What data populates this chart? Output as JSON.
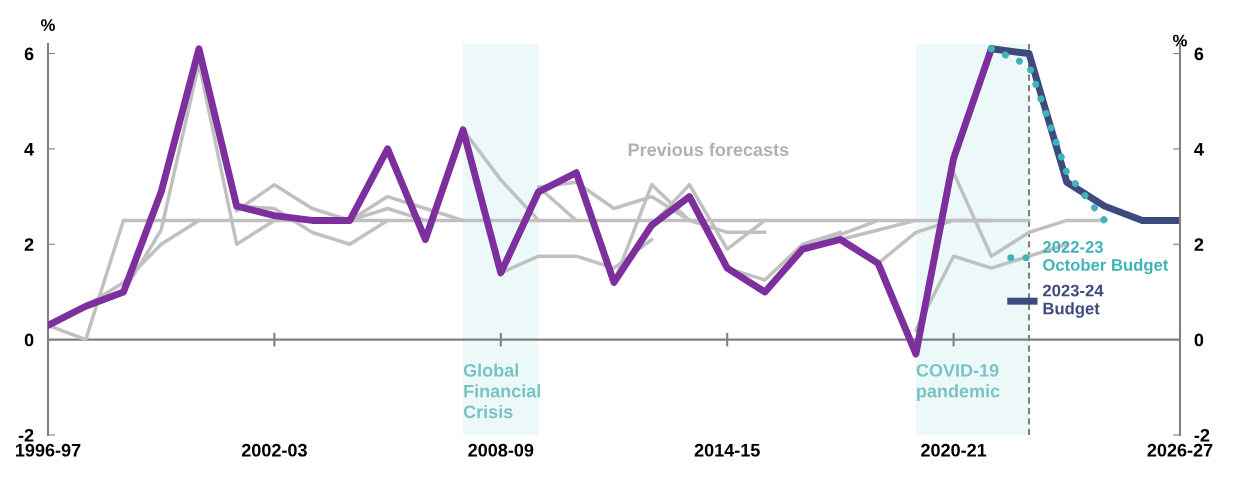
{
  "chart_data": {
    "type": "line",
    "categories": [
      "1996-97",
      null,
      null,
      null,
      null,
      null,
      "2002-03",
      null,
      null,
      null,
      null,
      null,
      "2008-09",
      null,
      null,
      null,
      null,
      null,
      "2014-15",
      null,
      null,
      null,
      null,
      null,
      "2020-21",
      null,
      null,
      null,
      null,
      null,
      "2026-27"
    ],
    "ylim": [
      -2,
      6.2
    ],
    "yticks": [
      -2,
      0,
      2,
      4,
      6
    ],
    "y2lim": [
      -2,
      6.2
    ],
    "y2ticks": [
      -2,
      0,
      2,
      4,
      6
    ],
    "ylabel": "%",
    "y2label": "%",
    "grid": false,
    "legend": "right",
    "series": [
      {
        "name": "Previous forecasts",
        "color": "#c0c0c0",
        "values": [
          null,
          null,
          2.5,
          2.5,
          2.5,
          2.5,
          2.5,
          2.5,
          2.5,
          2.5,
          2.5,
          2.5,
          2.5,
          2.5,
          2.5,
          2.5,
          2.5,
          2.5,
          2.5,
          2.5,
          2.5,
          2.5,
          2.5,
          2.5,
          2.5,
          2.5,
          2.5,
          null,
          null,
          null,
          null
        ]
      },
      {
        "color": "#c0c0c0",
        "values": [
          0.3,
          0.0,
          2.5,
          null,
          null,
          null,
          null,
          null,
          null,
          null,
          null,
          null,
          null,
          null,
          null,
          null,
          null,
          null,
          null,
          null,
          null,
          null,
          null,
          null,
          null,
          null,
          null,
          null,
          null,
          null,
          null
        ]
      },
      {
        "color": "#c0c0c0",
        "values": [
          null,
          0.7,
          1.2,
          2.0,
          2.5,
          null,
          null,
          null,
          null,
          null,
          null,
          null,
          null,
          null,
          null,
          null,
          null,
          null,
          null,
          null,
          null,
          null,
          null,
          null,
          null,
          null,
          null,
          null,
          null,
          null,
          null
        ]
      },
      {
        "color": "#c0c0c0",
        "values": [
          null,
          null,
          1.0,
          2.3,
          5.8,
          2.0,
          2.5,
          null,
          null,
          null,
          null,
          null,
          null,
          null,
          null,
          null,
          null,
          null,
          null,
          null,
          null,
          null,
          null,
          null,
          null,
          null,
          null,
          null,
          null,
          null,
          null
        ]
      },
      {
        "color": "#c0c0c0",
        "values": [
          null,
          null,
          null,
          null,
          6.1,
          2.7,
          3.25,
          2.75,
          2.5,
          null,
          null,
          null,
          null,
          null,
          null,
          null,
          null,
          null,
          null,
          null,
          null,
          null,
          null,
          null,
          null,
          null,
          null,
          null,
          null,
          null,
          null
        ]
      },
      {
        "color": "#c0c0c0",
        "values": [
          null,
          null,
          null,
          null,
          null,
          2.8,
          2.75,
          2.25,
          2.0,
          2.5,
          null,
          null,
          null,
          null,
          null,
          null,
          null,
          null,
          null,
          null,
          null,
          null,
          null,
          null,
          null,
          null,
          null,
          null,
          null,
          null,
          null
        ]
      },
      {
        "color": "#c0c0c0",
        "values": [
          null,
          null,
          null,
          null,
          null,
          null,
          null,
          null,
          2.5,
          3.0,
          2.75,
          2.5,
          null,
          null,
          null,
          null,
          null,
          null,
          null,
          null,
          null,
          null,
          null,
          null,
          null,
          null,
          null,
          null,
          null,
          null,
          null
        ]
      },
      {
        "color": "#c0c0c0",
        "values": [
          null,
          null,
          null,
          null,
          null,
          null,
          null,
          null,
          2.5,
          2.75,
          2.5,
          null,
          null,
          null,
          null,
          null,
          null,
          null,
          null,
          null,
          null,
          null,
          null,
          null,
          null,
          null,
          null,
          null,
          null,
          null,
          null
        ]
      },
      {
        "color": "#c0c0c0",
        "values": [
          null,
          null,
          null,
          null,
          null,
          null,
          null,
          null,
          null,
          null,
          null,
          4.4,
          3.35,
          2.5,
          null,
          null,
          null,
          null,
          null,
          null,
          null,
          null,
          null,
          null,
          null,
          null,
          null,
          null,
          null,
          null,
          null
        ]
      },
      {
        "color": "#c0c0c0",
        "values": [
          null,
          null,
          null,
          null,
          null,
          null,
          null,
          null,
          null,
          null,
          null,
          null,
          1.4,
          1.75,
          1.75,
          1.5,
          2.1,
          null,
          null,
          null,
          null,
          null,
          null,
          null,
          null,
          null,
          null,
          null,
          null,
          null,
          null
        ]
      },
      {
        "color": "#c0c0c0",
        "values": [
          null,
          null,
          null,
          null,
          null,
          null,
          null,
          null,
          null,
          null,
          null,
          null,
          null,
          3.2,
          3.3,
          2.75,
          3.0,
          2.5,
          null,
          null,
          null,
          null,
          null,
          null,
          null,
          null,
          null,
          null,
          null,
          null,
          null
        ]
      },
      {
        "color": "#c0c0c0",
        "values": [
          null,
          null,
          null,
          null,
          null,
          null,
          null,
          null,
          null,
          null,
          null,
          null,
          null,
          3.2,
          2.5,
          null,
          null,
          null,
          null,
          null,
          null,
          null,
          null,
          null,
          null,
          null,
          null,
          null,
          null,
          null,
          null
        ]
      },
      {
        "color": "#c0c0c0",
        "values": [
          null,
          null,
          null,
          null,
          null,
          null,
          null,
          null,
          null,
          null,
          null,
          null,
          null,
          null,
          null,
          1.2,
          3.25,
          2.5,
          2.25,
          2.25,
          null,
          null,
          null,
          null,
          null,
          null,
          null,
          null,
          null,
          null,
          null
        ]
      },
      {
        "color": "#c0c0c0",
        "values": [
          null,
          null,
          null,
          null,
          null,
          null,
          null,
          null,
          null,
          null,
          null,
          null,
          null,
          null,
          null,
          null,
          2.4,
          3.25,
          1.9,
          2.5,
          null,
          null,
          null,
          null,
          null,
          null,
          null,
          null,
          null,
          null,
          null
        ]
      },
      {
        "color": "#c0c0c0",
        "values": [
          null,
          null,
          null,
          null,
          null,
          null,
          null,
          null,
          null,
          null,
          null,
          null,
          null,
          null,
          null,
          null,
          null,
          null,
          1.5,
          1.25,
          2.0,
          2.25,
          null,
          null,
          null,
          null,
          null,
          null,
          null,
          null,
          null
        ]
      },
      {
        "color": "#c0c0c0",
        "values": [
          null,
          null,
          null,
          null,
          null,
          null,
          null,
          null,
          null,
          null,
          null,
          null,
          null,
          null,
          null,
          null,
          null,
          null,
          null,
          null,
          1.9,
          2.2,
          2.5,
          null,
          null,
          null,
          null,
          null,
          null,
          null,
          null
        ]
      },
      {
        "color": "#c0c0c0",
        "values": [
          null,
          null,
          null,
          null,
          null,
          null,
          null,
          null,
          null,
          null,
          null,
          null,
          null,
          null,
          null,
          null,
          null,
          null,
          null,
          null,
          null,
          2.1,
          2.3,
          2.5,
          null,
          null,
          null,
          null,
          null,
          null,
          null
        ]
      },
      {
        "color": "#c0c0c0",
        "values": [
          null,
          null,
          null,
          null,
          null,
          null,
          null,
          null,
          null,
          null,
          null,
          null,
          null,
          null,
          null,
          null,
          null,
          null,
          null,
          null,
          null,
          null,
          1.6,
          2.25,
          2.5,
          2.5,
          null,
          null,
          null,
          null,
          null
        ]
      },
      {
        "color": "#c0c0c0",
        "values": [
          null,
          null,
          null,
          null,
          null,
          null,
          null,
          null,
          null,
          null,
          null,
          null,
          null,
          null,
          null,
          null,
          null,
          null,
          null,
          null,
          null,
          null,
          null,
          0.2,
          1.75,
          1.5,
          1.75,
          2.0,
          null,
          null,
          null
        ]
      },
      {
        "color": "#c0c0c0",
        "values": [
          null,
          null,
          null,
          null,
          null,
          null,
          null,
          null,
          null,
          null,
          null,
          null,
          null,
          null,
          null,
          null,
          null,
          null,
          null,
          null,
          null,
          null,
          null,
          null,
          3.5,
          1.75,
          2.25,
          2.5,
          2.5,
          null,
          null
        ]
      },
      {
        "color": "#7e2f9e",
        "values": [
          0.3,
          0.7,
          1.0,
          3.1,
          6.1,
          2.8,
          2.6,
          2.5,
          2.5,
          4.0,
          2.1,
          4.4,
          1.4,
          3.1,
          3.5,
          1.2,
          2.4,
          3.0,
          1.5,
          1.0,
          1.9,
          2.1,
          1.6,
          -0.3,
          3.8,
          6.1,
          null,
          null,
          null,
          null,
          null
        ]
      },
      {
        "name": "2022-23 October Budget",
        "color": "#3fb3b8",
        "line_style": "dotted",
        "values": [
          null,
          null,
          null,
          null,
          null,
          null,
          null,
          null,
          null,
          null,
          null,
          null,
          null,
          null,
          null,
          null,
          null,
          null,
          null,
          null,
          null,
          null,
          null,
          null,
          null,
          6.1,
          5.75,
          3.5,
          2.5,
          null,
          null
        ]
      },
      {
        "name": "2023-24 Budget",
        "color": "#3d4a7e",
        "values": [
          null,
          null,
          null,
          null,
          null,
          null,
          null,
          null,
          null,
          null,
          null,
          null,
          null,
          null,
          null,
          null,
          null,
          null,
          null,
          null,
          null,
          null,
          null,
          null,
          null,
          6.1,
          6.0,
          3.3,
          2.8,
          2.5,
          2.5
        ]
      }
    ],
    "annotations": [
      "Global\nFinancial\nCrisis",
      "COVID-19\npandemic"
    ]
  }
}
